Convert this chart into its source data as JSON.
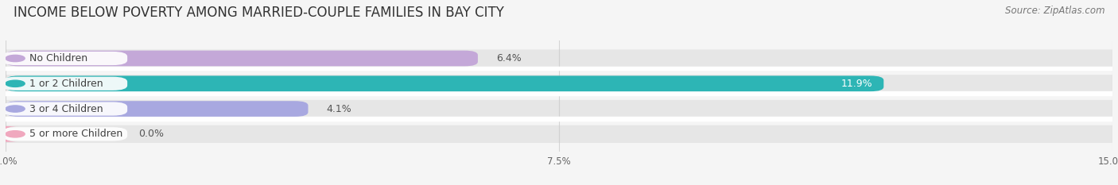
{
  "title": "INCOME BELOW POVERTY AMONG MARRIED-COUPLE FAMILIES IN BAY CITY",
  "source": "Source: ZipAtlas.com",
  "categories": [
    "No Children",
    "1 or 2 Children",
    "3 or 4 Children",
    "5 or more Children"
  ],
  "values": [
    6.4,
    11.9,
    4.1,
    0.0
  ],
  "bar_colors": [
    "#c4a8d8",
    "#2db5b5",
    "#a8a8e0",
    "#f0a8be"
  ],
  "label_left_colors": [
    "#c4a8d8",
    "#2db5b5",
    "#a8a8e0",
    "#f0a8be"
  ],
  "xlim": [
    0,
    15.0
  ],
  "xticks": [
    0.0,
    7.5,
    15.0
  ],
  "xtick_labels": [
    "0.0%",
    "7.5%",
    "15.0%"
  ],
  "background_color": "#f5f5f5",
  "bar_bg_color": "#e6e6e6",
  "row_bg_color": "#efefef",
  "title_fontsize": 12,
  "source_fontsize": 8.5,
  "label_fontsize": 9,
  "value_fontsize": 9
}
